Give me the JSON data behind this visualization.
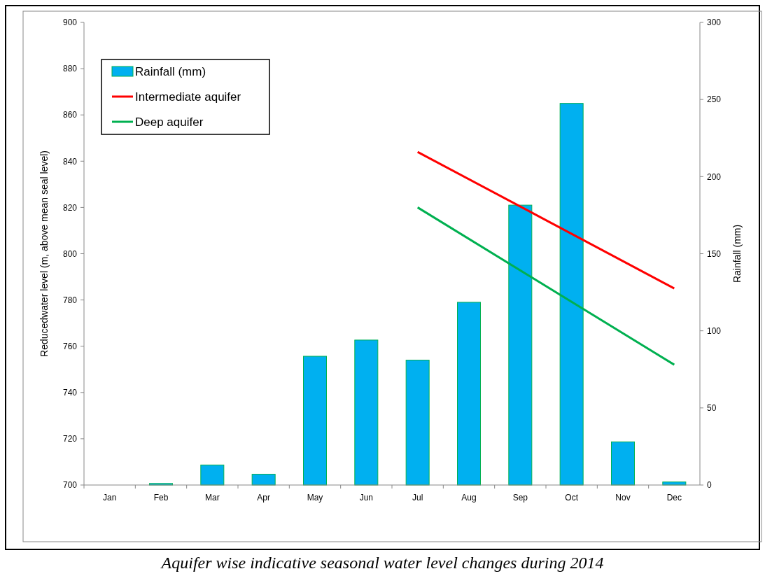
{
  "chart_data": {
    "type": "bar",
    "title": "Aquifer wise indicative seasonal water level changes during 2014",
    "categories": [
      "Jan",
      "Feb",
      "Mar",
      "Apr",
      "May",
      "Jun",
      "Jul",
      "Aug",
      "Sep",
      "Oct",
      "Nov",
      "Dec"
    ],
    "ylabel": "Reducedwater level (m, above mean seal level)",
    "y2label": "Rainfall (mm)",
    "ylim": [
      700,
      900
    ],
    "yticks": [
      700,
      720,
      740,
      760,
      780,
      800,
      820,
      840,
      860,
      880,
      900
    ],
    "y2lim": [
      0,
      300
    ],
    "y2ticks": [
      0,
      50,
      100,
      150,
      200,
      250,
      300
    ],
    "series": [
      {
        "name": "Rainfall (mm)",
        "axis": "y2",
        "color": "#00b0f0",
        "values": [
          0,
          1,
          13,
          7,
          83.5,
          94,
          81,
          118.5,
          181.5,
          247.5,
          28,
          2
        ]
      },
      {
        "name": "Intermediate aquifer",
        "type": "line",
        "axis": "y",
        "color": "#ff0000",
        "values": [
          null,
          null,
          null,
          null,
          null,
          null,
          844,
          null,
          null,
          null,
          null,
          785
        ]
      },
      {
        "name": "Deep aquifer",
        "type": "line",
        "axis": "y",
        "color": "#00b050",
        "values": [
          null,
          null,
          null,
          null,
          null,
          null,
          820,
          null,
          null,
          null,
          null,
          752
        ]
      }
    ],
    "legend": "top left",
    "grid": false,
    "marker": "none",
    "line_style": "solid"
  }
}
